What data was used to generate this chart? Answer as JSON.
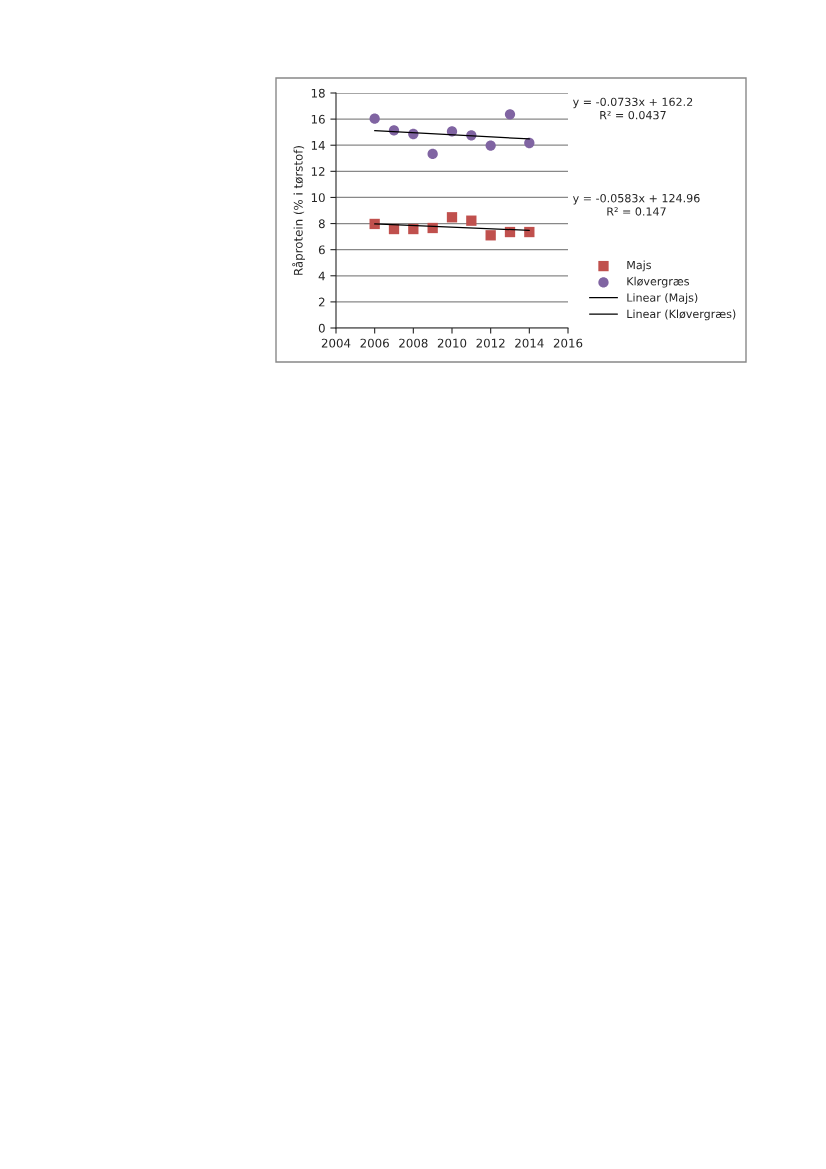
{
  "chart_data": {
    "type": "scatter",
    "ylabel": "Råprotein (% i tørstof)",
    "xlim": [
      2004,
      2016
    ],
    "xticks": [
      2004,
      2006,
      2008,
      2010,
      2012,
      2014,
      2016
    ],
    "ylim": [
      0,
      18
    ],
    "yticks": [
      0,
      2,
      4,
      6,
      8,
      10,
      12,
      14,
      16,
      18
    ],
    "grid": "y",
    "legend": "right",
    "annotations": [
      "y = -0.0733x + 162.2\nR² = 0.0437",
      "y = -0.0583x + 124.96\nR² = 0.147"
    ],
    "series": [
      {
        "name": "Majs",
        "marker": "square",
        "color": "#c0504d",
        "x": [
          2006,
          2007,
          2008,
          2009,
          2010,
          2011,
          2012,
          2013,
          2014
        ],
        "values": [
          7.97,
          7.58,
          7.58,
          7.66,
          8.48,
          8.22,
          7.1,
          7.35,
          7.35
        ]
      },
      {
        "name": "Kløvergræs",
        "marker": "circle",
        "color": "#8064a2",
        "x": [
          2006,
          2007,
          2008,
          2009,
          2010,
          2011,
          2012,
          2013,
          2014
        ],
        "values": [
          16.03,
          15.14,
          14.86,
          13.33,
          15.06,
          14.76,
          13.97,
          16.37,
          14.17
        ]
      },
      {
        "name": "Linear (Majs)",
        "type": "line",
        "marker": "none",
        "color": "#000000",
        "x": [
          2006,
          2014
        ],
        "values": [
          7.97,
          7.48
        ]
      },
      {
        "name": "Linear (Kløvergræs)",
        "type": "line",
        "marker": "none",
        "color": "#000000",
        "x": [
          2006,
          2014
        ],
        "values": [
          15.11,
          14.48
        ]
      }
    ]
  }
}
